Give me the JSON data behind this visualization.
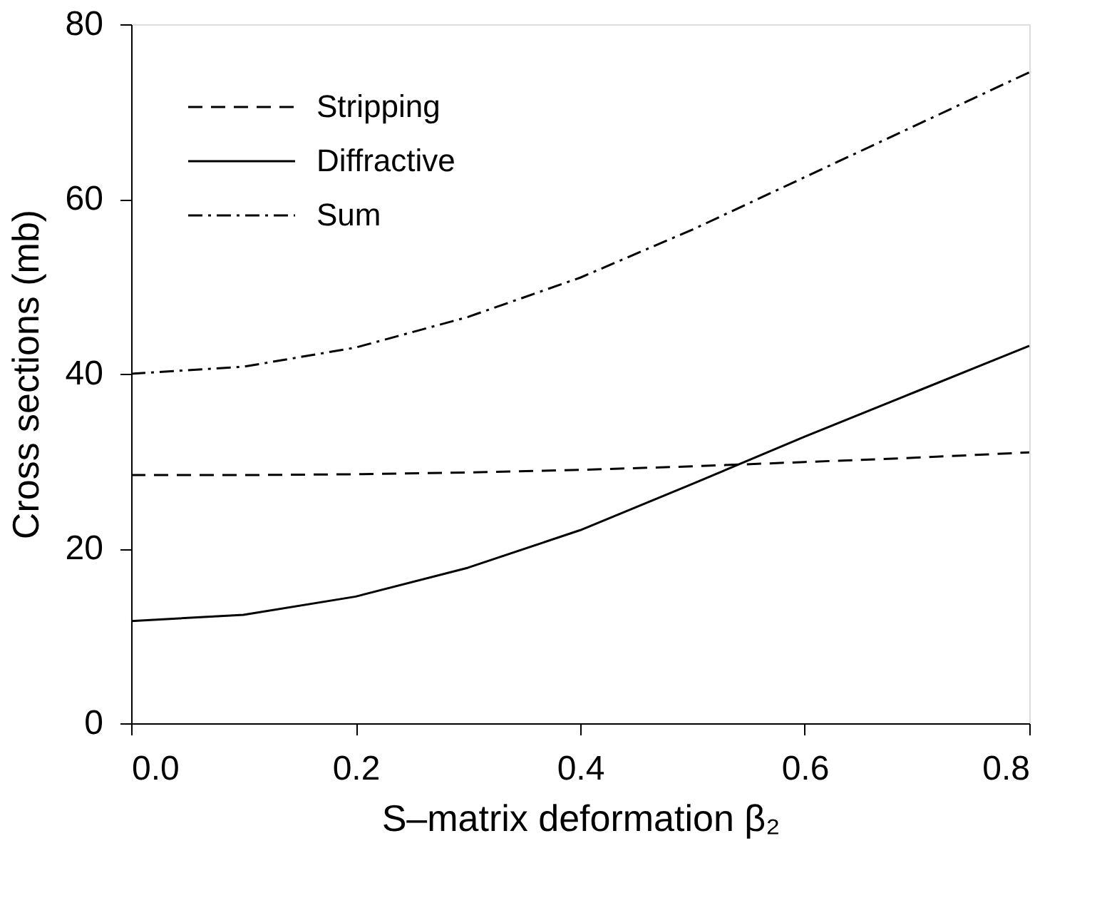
{
  "chart_data": {
    "type": "line",
    "xlabel": "S–matrix  deformation β₂",
    "ylabel": "Cross sections  (mb)",
    "x": [
      0.0,
      0.1,
      0.2,
      0.3,
      0.4,
      0.5,
      0.6,
      0.7,
      0.8
    ],
    "series": [
      {
        "name": "Stripping",
        "color": "#000000",
        "line_style": "dashed",
        "values": [
          28.4,
          28.4,
          28.5,
          28.7,
          29.0,
          29.4,
          29.9,
          30.4,
          31.0
        ]
      },
      {
        "name": "Diffractive",
        "color": "#000000",
        "line_style": "solid",
        "values": [
          11.7,
          12.4,
          14.5,
          17.8,
          22.1,
          27.4,
          32.8,
          38.0,
          43.2
        ]
      },
      {
        "name": "Sum",
        "color": "#000000",
        "line_style": "dashdot",
        "values": [
          40.0,
          40.8,
          43.0,
          46.5,
          51.0,
          56.5,
          62.5,
          68.5,
          74.5
        ]
      }
    ],
    "xlim": [
      0.0,
      0.8
    ],
    "xticks": [
      {
        "value": 0,
        "label": "0.0"
      },
      {
        "value": 0.2,
        "label": "0.2"
      },
      {
        "value": 0.4,
        "label": "0.4"
      },
      {
        "value": 0.6,
        "label": "0.6"
      },
      {
        "value": 0.8,
        "label": "0.8"
      }
    ],
    "ylim": [
      0,
      80
    ],
    "yticks": [
      0,
      20,
      40,
      60,
      80
    ],
    "grid": false,
    "legend": "top left",
    "marker": "none"
  }
}
